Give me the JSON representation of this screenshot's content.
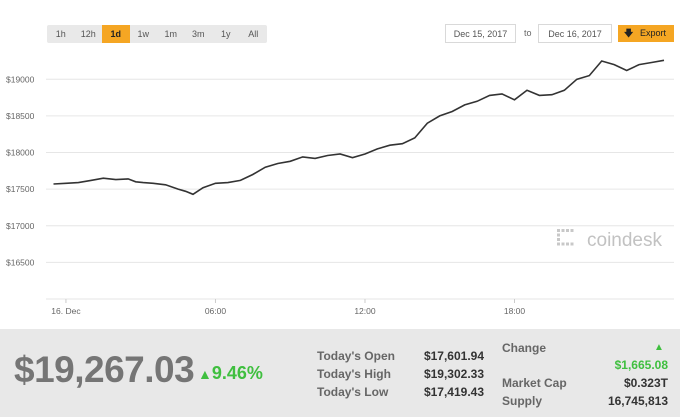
{
  "toolbar": {
    "ranges": [
      {
        "label": "1h",
        "active": false
      },
      {
        "label": "12h",
        "active": false
      },
      {
        "label": "1d",
        "active": true
      },
      {
        "label": "1w",
        "active": false
      },
      {
        "label": "1m",
        "active": false
      },
      {
        "label": "3m",
        "active": false
      },
      {
        "label": "1y",
        "active": false
      },
      {
        "label": "All",
        "active": false
      }
    ],
    "start_date": "Dec 15, 2017",
    "to_label": "to",
    "end_date": "Dec 16, 2017",
    "export_label": "Export",
    "export_icon": "download-arrow-icon"
  },
  "chart_data": {
    "type": "line",
    "ylim": [
      16000,
      19400
    ],
    "xlim": [
      -0.3,
      24.9
    ],
    "y_ticks": [
      {
        "value": 16500,
        "label": "$16500"
      },
      {
        "value": 17000,
        "label": "$17000"
      },
      {
        "value": 17500,
        "label": "$17500"
      },
      {
        "value": 18000,
        "label": "$18000"
      },
      {
        "value": 18500,
        "label": "$18500"
      },
      {
        "value": 19000,
        "label": "$19000"
      }
    ],
    "x_ticks": [
      {
        "value": 0.5,
        "label": "16. Dec"
      },
      {
        "value": 6.5,
        "label": "06:00"
      },
      {
        "value": 12.5,
        "label": "12:00"
      },
      {
        "value": 18.5,
        "label": "18:00"
      }
    ],
    "grid": "horizontal",
    "line_color": "#333333",
    "watermark": "coindesk",
    "series": [
      {
        "x": [
          0,
          0.5,
          1,
          1.5,
          2,
          2.5,
          3,
          3.3,
          3.6,
          4,
          4.5,
          5,
          5.3,
          5.6,
          6,
          6.5,
          7,
          7.5,
          8,
          8.5,
          9,
          9.5,
          10,
          10.5,
          11,
          11.5,
          12,
          12.5,
          13,
          13.5,
          14,
          14.5,
          15,
          15.5,
          16,
          16.5,
          17,
          17.5,
          18,
          18.5,
          19,
          19.5,
          20,
          20.5,
          21,
          21.5,
          22,
          22.5,
          23,
          23.5,
          24,
          24.5
        ],
        "y": [
          17570,
          17580,
          17590,
          17620,
          17650,
          17630,
          17640,
          17600,
          17590,
          17580,
          17560,
          17500,
          17470,
          17430,
          17520,
          17580,
          17590,
          17620,
          17700,
          17800,
          17850,
          17880,
          17940,
          17920,
          17960,
          17980,
          17930,
          17980,
          18050,
          18100,
          18120,
          18200,
          18400,
          18500,
          18560,
          18650,
          18700,
          18780,
          18800,
          18720,
          18850,
          18780,
          18790,
          18850,
          19000,
          19050,
          19250,
          19200,
          19120,
          19200,
          19230,
          19260
        ]
      }
    ]
  },
  "summary": {
    "price": "$19,267.03",
    "change_arrow": "▲",
    "change_percent": "9.46%",
    "open_label": "Today's Open",
    "open_value": "$17,601.94",
    "high_label": "Today's High",
    "high_value": "$19,302.33",
    "low_label": "Today's Low",
    "low_value": "$17,419.43",
    "change_label": "Change",
    "change_value": "$1,665.08",
    "market_cap_label": "Market Cap",
    "market_cap_value": "$0.323T",
    "supply_label": "Supply",
    "supply_value": "16,745,813"
  }
}
